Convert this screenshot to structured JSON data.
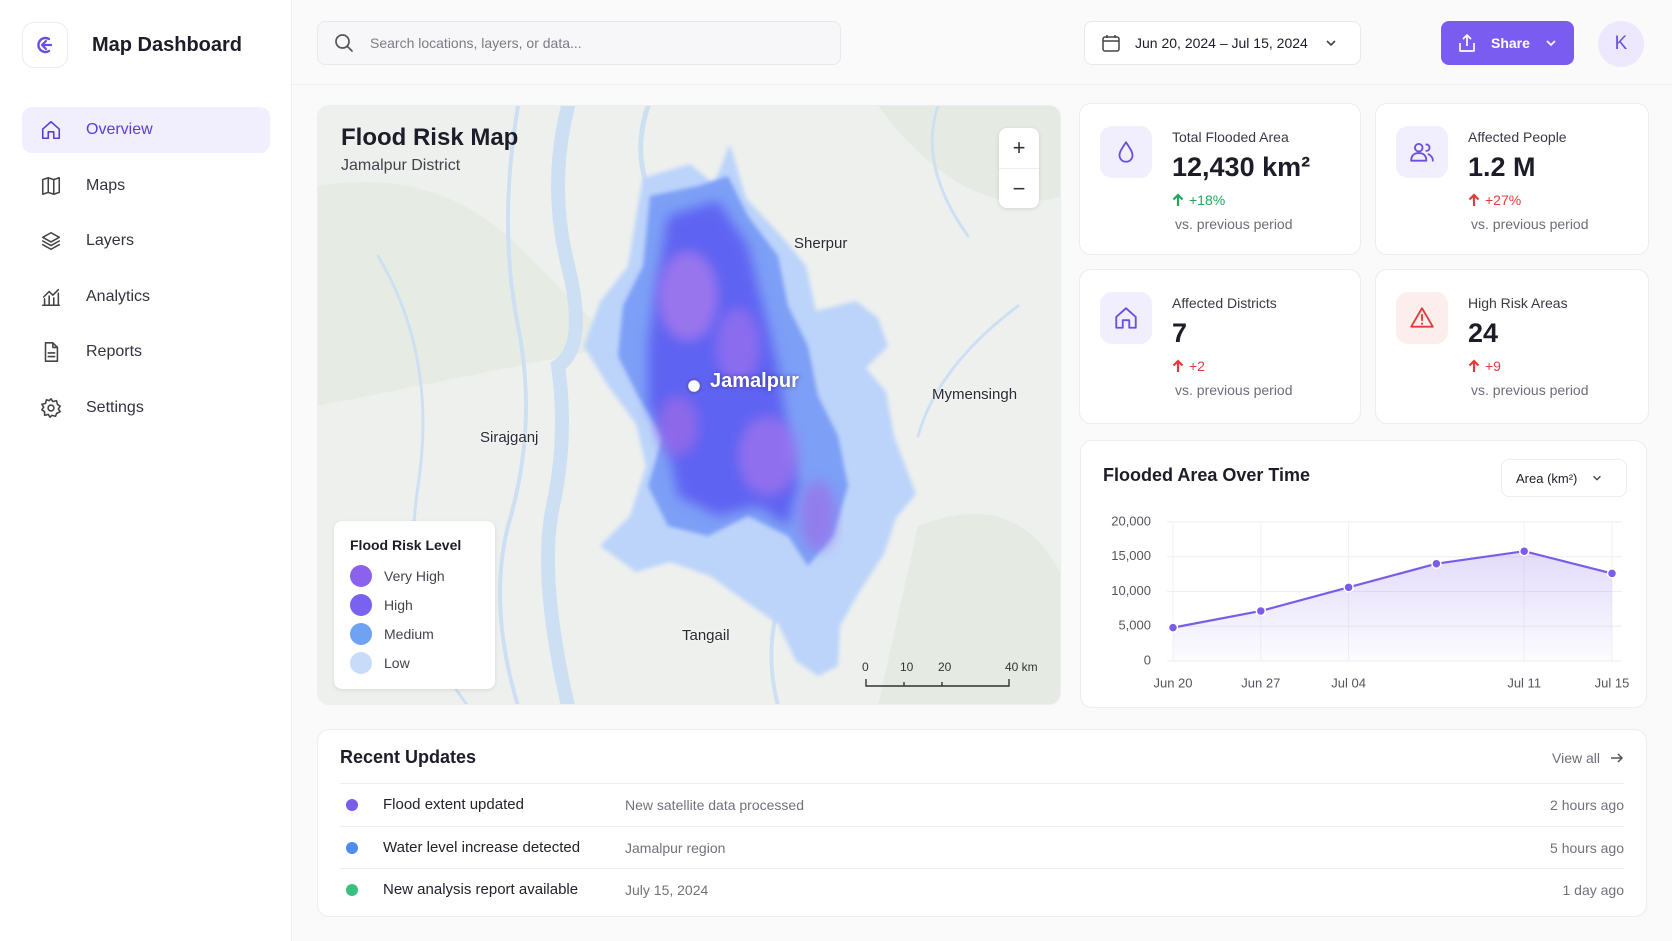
{
  "sidebar": {
    "brand": "Map Dashboard",
    "nav": [
      "Overview",
      "Maps",
      "Layers",
      "Analytics",
      "Reports",
      "Settings"
    ]
  },
  "topbar": {
    "search_placeholder": "Search locations, layers, or data...",
    "date_range": "Jun 20, 2024 – Jul 15, 2024",
    "share": "Share",
    "avatar": "K"
  },
  "map": {
    "title": "Flood Risk Map",
    "subtitle": "Jamalpur District",
    "places": [
      "Sherpur",
      "Mymensingh",
      "Sirajganj",
      "Tangail"
    ],
    "city": "Jamalpur",
    "zoom_in": "+",
    "zoom_out": "−",
    "legend": {
      "title": "Flood Risk Level",
      "items": [
        {
          "label": "Very High",
          "color": "#8b62ee"
        },
        {
          "label": "High",
          "color": "#7a62f0"
        },
        {
          "label": "Medium",
          "color": "#6fa2f3"
        },
        {
          "label": "Low",
          "color": "#c8dcfa"
        }
      ]
    },
    "scale": [
      "0",
      "10",
      "20",
      "40 km"
    ]
  },
  "stats": [
    {
      "label": "Total Flooded Area",
      "value": "12,430 km²",
      "change": "+18%",
      "note": "vs. previous period"
    },
    {
      "label": "Affected People",
      "value": "1.2 M",
      "change": "+27%",
      "note": "vs. previous period"
    },
    {
      "label": "Affected Districts",
      "value": "7",
      "change": "+2",
      "note": "vs. previous period"
    },
    {
      "label": "High Risk Areas",
      "value": "24",
      "change": "+9",
      "note": "vs. previous period"
    }
  ],
  "chart_data": {
    "type": "line",
    "title": "Flooded Area Over Time",
    "selector": "Area (km²)",
    "categories": [
      "Jun 20",
      "Jun 27",
      "Jul 04",
      null,
      "Jul 11",
      "Jul 15"
    ],
    "series": [
      {
        "name": "Area (km²)",
        "color": "#7b5ce8",
        "values": [
          4800,
          7200,
          10600,
          14000,
          15800,
          12600
        ]
      }
    ],
    "ylim": [
      0,
      20000
    ],
    "yticks": [
      0,
      {
        "value": 5000,
        "label": "5,000"
      },
      {
        "value": 10000,
        "label": "10,000"
      },
      {
        "value": 15000,
        "label": "15,000"
      },
      {
        "value": 20000,
        "label": "20,000"
      }
    ],
    "grid": true
  },
  "updates": {
    "title": "Recent Updates",
    "view_all": "View all",
    "items": [
      {
        "title": "Flood extent updated",
        "detail": "New satellite data processed",
        "time": "2 hours ago",
        "color": "#7b5ce8"
      },
      {
        "title": "Water level increase detected",
        "detail": "Jamalpur region",
        "time": "5 hours ago",
        "color": "#4f8cf0"
      },
      {
        "title": "New analysis report available",
        "detail": "July 15, 2024",
        "time": "1 day ago",
        "color": "#37c07f"
      }
    ]
  }
}
